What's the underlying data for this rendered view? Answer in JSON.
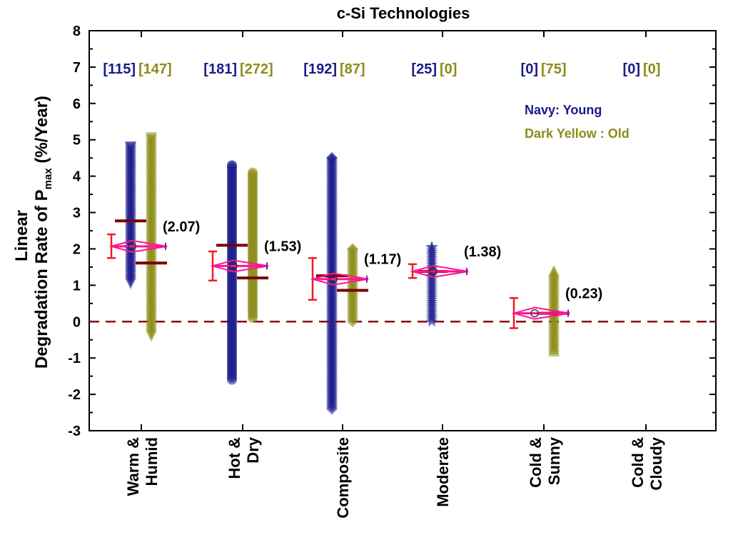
{
  "chart_data": {
    "type": "scatter",
    "title": "c-Si Technologies",
    "ylabel_line1": "Linear",
    "ylabel_line2": "Degradation Rate of P",
    "ylabel_sub": "max",
    "ylabel_unit": " (%/Year)",
    "ylim": [
      -3,
      8
    ],
    "yticks": [
      "-3",
      "-2",
      "-1",
      "0",
      "1",
      "2",
      "3",
      "4",
      "5",
      "6",
      "7",
      "8"
    ],
    "reference_line": 0,
    "colors": {
      "young": "#1a1a8c",
      "old": "#8c8c1a",
      "median": "#7a0000",
      "errorbar": "#ee1c25",
      "mean_marker": "#ff1493",
      "reference": "#8b0000"
    },
    "legend": {
      "young": "Navy: Young",
      "old": "Dark Yellow : Old"
    },
    "categories": [
      {
        "label1": "Warm &",
        "label2": "Humid",
        "count_young": "[115]",
        "count_old": "[147]",
        "young": {
          "marker": "triangle-down",
          "min": 1.05,
          "max": 4.8,
          "median": 2.77
        },
        "old": {
          "marker": "triangle-down",
          "min": -0.4,
          "max": 5.05,
          "median": 1.61
        },
        "mean": 2.07,
        "ci": [
          1.75,
          2.4
        ],
        "value_label": "(2.07)"
      },
      {
        "label1": "Hot &",
        "label2": "Dry",
        "count_young": "[181]",
        "count_old": "[272]",
        "young": {
          "marker": "circle",
          "min": -1.6,
          "max": 4.3,
          "median": 2.1
        },
        "old": {
          "marker": "circle",
          "min": 0.1,
          "max": 4.1,
          "median": 1.2
        },
        "mean": 1.53,
        "ci": [
          1.13,
          1.93
        ],
        "value_label": "(1.53)"
      },
      {
        "label1": "Composite",
        "label2": "",
        "count_young": "[192]",
        "count_old": "[87]",
        "young": {
          "marker": "diamond",
          "min": -2.4,
          "max": 4.5,
          "median": 1.26
        },
        "old": {
          "marker": "diamond",
          "min": 0.0,
          "max": 2.0,
          "median": 0.86
        },
        "mean": 1.17,
        "ci": [
          0.6,
          1.75
        ],
        "value_label": "(1.17)"
      },
      {
        "label1": "Moderate",
        "label2": "",
        "count_young": "[25]",
        "count_old": "[0]",
        "young": {
          "marker": "star",
          "min": 0.0,
          "max": 2.05,
          "median": 1.38
        },
        "old": null,
        "mean": 1.38,
        "ci": [
          1.2,
          1.58
        ],
        "value_label": "(1.38)"
      },
      {
        "label1": "Cold &",
        "label2": "Sunny",
        "count_young": "[0]",
        "count_old": "[75]",
        "young": null,
        "old": {
          "marker": "triangle-up",
          "min": -0.8,
          "max": 1.4,
          "median": 0.23
        },
        "mean": 0.23,
        "ci": [
          -0.18,
          0.65
        ],
        "value_label": "(0.23)"
      },
      {
        "label1": "Cold &",
        "label2": "Cloudy",
        "count_young": "[0]",
        "count_old": "[0]",
        "young": null,
        "old": null,
        "mean": null,
        "ci": null,
        "value_label": ""
      }
    ]
  }
}
